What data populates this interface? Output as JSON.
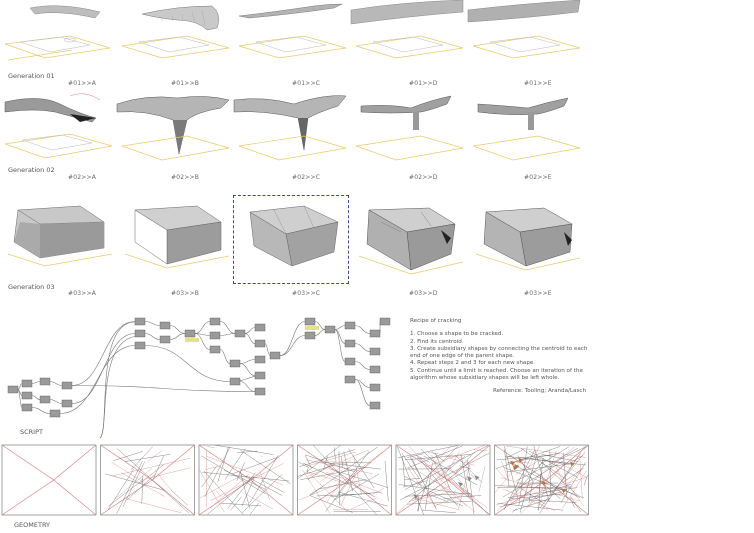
{
  "generations": [
    {
      "label": "Generation 01",
      "items": [
        "#01>>A",
        "#01>>B",
        "#01>>C",
        "#01>>D",
        "#01>>E"
      ]
    },
    {
      "label": "Generation 02",
      "items": [
        "#02>>A",
        "#02>>B",
        "#02>>C",
        "#02>>D",
        "#02>>E"
      ]
    },
    {
      "label": "Generation 03",
      "items": [
        "#03>>A",
        "#03>>B",
        "#03>>C",
        "#03>>D",
        "#03>>E"
      ]
    }
  ],
  "selected": "#03>>C",
  "script_label": "SCRIPT",
  "geometry_label": "GEOMETRY",
  "recipe": {
    "title": "Recipe of cracking",
    "steps": [
      "1. Choose a shape to be cracked.",
      "2. Find its centroid",
      "3. Create subsidiary shapes by connecting the centroid to each end of one edge of the parent shape.",
      "4. Repeat steps 2 and 3 for each new shape.",
      "5. Continue until a limit is reached. Choose an iteration of the algorithm whose subsidiary shapes will be left whole."
    ],
    "reference": "Reference: Tooling; Aranda/Lasch"
  },
  "colors": {
    "plan_yellow": "#e8c96a",
    "plan_line": "#b9b9b9",
    "red_line": "#d97a7a",
    "select_box": "#3a4b8a"
  }
}
